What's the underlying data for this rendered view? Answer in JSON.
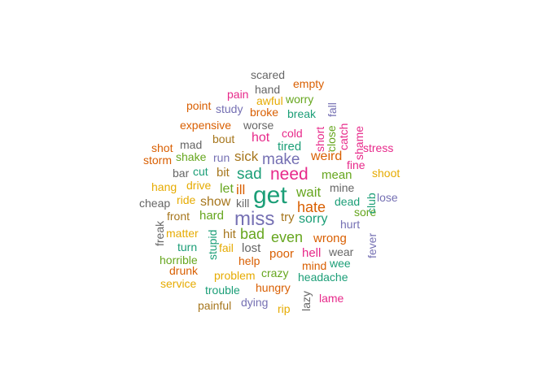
{
  "palette": {
    "teal": "#1B9E77",
    "orange": "#D95F02",
    "purple": "#7570B3",
    "magenta": "#E7298A",
    "green": "#66A61E",
    "yellow": "#E6AB02",
    "brown": "#A6761D",
    "gray": "#666666"
  },
  "words": [
    {
      "id": "get",
      "text": "get",
      "color": "teal"
    },
    {
      "id": "miss",
      "text": "miss",
      "color": "purple"
    },
    {
      "id": "need",
      "text": "need",
      "color": "magenta"
    },
    {
      "id": "sad",
      "text": "sad",
      "color": "teal"
    },
    {
      "id": "make",
      "text": "make",
      "color": "purple"
    },
    {
      "id": "hate",
      "text": "hate",
      "color": "orange"
    },
    {
      "id": "bad",
      "text": "bad",
      "color": "green"
    },
    {
      "id": "even",
      "text": "even",
      "color": "green"
    },
    {
      "id": "wait",
      "text": "wait",
      "color": "green"
    },
    {
      "id": "sorry",
      "text": "sorry",
      "color": "teal"
    },
    {
      "id": "ill",
      "text": "ill",
      "color": "orange"
    },
    {
      "id": "sick",
      "text": "sick",
      "color": "brown"
    },
    {
      "id": "hot",
      "text": "hot",
      "color": "magenta"
    },
    {
      "id": "tired",
      "text": "tired",
      "color": "teal"
    },
    {
      "id": "weird",
      "text": "weird",
      "color": "orange"
    },
    {
      "id": "mean",
      "text": "mean",
      "color": "green"
    },
    {
      "id": "show",
      "text": "show",
      "color": "brown"
    },
    {
      "id": "let",
      "text": "let",
      "color": "green"
    },
    {
      "id": "kill",
      "text": "kill",
      "color": "gray"
    },
    {
      "id": "hard",
      "text": "hard",
      "color": "green"
    },
    {
      "id": "hit",
      "text": "hit",
      "color": "brown"
    },
    {
      "id": "lost",
      "text": "lost",
      "color": "gray"
    },
    {
      "id": "poor",
      "text": "poor",
      "color": "orange"
    },
    {
      "id": "wrong",
      "text": "wrong",
      "color": "orange"
    },
    {
      "id": "help",
      "text": "help",
      "color": "orange"
    },
    {
      "id": "hell",
      "text": "hell",
      "color": "magenta"
    },
    {
      "id": "try",
      "text": "try",
      "color": "brown"
    },
    {
      "id": "bit",
      "text": "bit",
      "color": "brown"
    },
    {
      "id": "cut",
      "text": "cut",
      "color": "teal"
    },
    {
      "id": "run",
      "text": "run",
      "color": "purple"
    },
    {
      "id": "bout",
      "text": "bout",
      "color": "brown"
    },
    {
      "id": "worse",
      "text": "worse",
      "color": "gray"
    },
    {
      "id": "cold",
      "text": "cold",
      "color": "magenta"
    },
    {
      "id": "break",
      "text": "break",
      "color": "teal"
    },
    {
      "id": "broke",
      "text": "broke",
      "color": "orange"
    },
    {
      "id": "worry",
      "text": "worry",
      "color": "green"
    },
    {
      "id": "awful",
      "text": "awful",
      "color": "yellow"
    },
    {
      "id": "hand",
      "text": "hand",
      "color": "gray"
    },
    {
      "id": "pain",
      "text": "pain",
      "color": "magenta"
    },
    {
      "id": "empty",
      "text": "empty",
      "color": "orange"
    },
    {
      "id": "scared",
      "text": "scared",
      "color": "gray"
    },
    {
      "id": "point",
      "text": "point",
      "color": "orange"
    },
    {
      "id": "study",
      "text": "study",
      "color": "purple"
    },
    {
      "id": "expensive",
      "text": "expensive",
      "color": "orange"
    },
    {
      "id": "mad",
      "text": "mad",
      "color": "gray"
    },
    {
      "id": "shot",
      "text": "shot",
      "color": "orange"
    },
    {
      "id": "shake",
      "text": "shake",
      "color": "green"
    },
    {
      "id": "storm",
      "text": "storm",
      "color": "orange"
    },
    {
      "id": "bar",
      "text": "bar",
      "color": "gray"
    },
    {
      "id": "hang",
      "text": "hang",
      "color": "yellow"
    },
    {
      "id": "drive",
      "text": "drive",
      "color": "yellow"
    },
    {
      "id": "cheap",
      "text": "cheap",
      "color": "gray"
    },
    {
      "id": "ride",
      "text": "ride",
      "color": "yellow"
    },
    {
      "id": "front",
      "text": "front",
      "color": "brown"
    },
    {
      "id": "freak",
      "text": "freak",
      "color": "gray"
    },
    {
      "id": "matter",
      "text": "matter",
      "color": "yellow"
    },
    {
      "id": "turn",
      "text": "turn",
      "color": "teal"
    },
    {
      "id": "horrible",
      "text": "horrible",
      "color": "green"
    },
    {
      "id": "drunk",
      "text": "drunk",
      "color": "orange"
    },
    {
      "id": "service",
      "text": "service",
      "color": "yellow"
    },
    {
      "id": "stupid",
      "text": "stupid",
      "color": "teal"
    },
    {
      "id": "fail",
      "text": "fail",
      "color": "yellow"
    },
    {
      "id": "problem",
      "text": "problem",
      "color": "yellow"
    },
    {
      "id": "trouble",
      "text": "trouble",
      "color": "teal"
    },
    {
      "id": "crazy",
      "text": "crazy",
      "color": "green"
    },
    {
      "id": "hungry",
      "text": "hungry",
      "color": "orange"
    },
    {
      "id": "painful",
      "text": "painful",
      "color": "brown"
    },
    {
      "id": "dying",
      "text": "dying",
      "color": "purple"
    },
    {
      "id": "rip",
      "text": "rip",
      "color": "yellow"
    },
    {
      "id": "lazy",
      "text": "lazy",
      "color": "gray"
    },
    {
      "id": "lame",
      "text": "lame",
      "color": "magenta"
    },
    {
      "id": "headache",
      "text": "headache",
      "color": "teal"
    },
    {
      "id": "mind",
      "text": "mind",
      "color": "orange"
    },
    {
      "id": "wee",
      "text": "wee",
      "color": "teal"
    },
    {
      "id": "wear",
      "text": "wear",
      "color": "gray"
    },
    {
      "id": "hurt",
      "text": "hurt",
      "color": "purple"
    },
    {
      "id": "fever",
      "text": "fever",
      "color": "purple"
    },
    {
      "id": "sore",
      "text": "sore",
      "color": "green"
    },
    {
      "id": "dead",
      "text": "dead",
      "color": "teal"
    },
    {
      "id": "mine",
      "text": "mine",
      "color": "gray"
    },
    {
      "id": "club",
      "text": "club",
      "color": "teal"
    },
    {
      "id": "lose",
      "text": "lose",
      "color": "purple"
    },
    {
      "id": "shoot",
      "text": "shoot",
      "color": "yellow"
    },
    {
      "id": "fine",
      "text": "fine",
      "color": "magenta"
    },
    {
      "id": "stress",
      "text": "stress",
      "color": "magenta"
    },
    {
      "id": "shame",
      "text": "shame",
      "color": "magenta"
    },
    {
      "id": "catch",
      "text": "catch",
      "color": "magenta"
    },
    {
      "id": "short",
      "text": "short",
      "color": "magenta"
    },
    {
      "id": "close",
      "text": "close",
      "color": "green"
    },
    {
      "id": "fall",
      "text": "fall",
      "color": "purple"
    }
  ]
}
